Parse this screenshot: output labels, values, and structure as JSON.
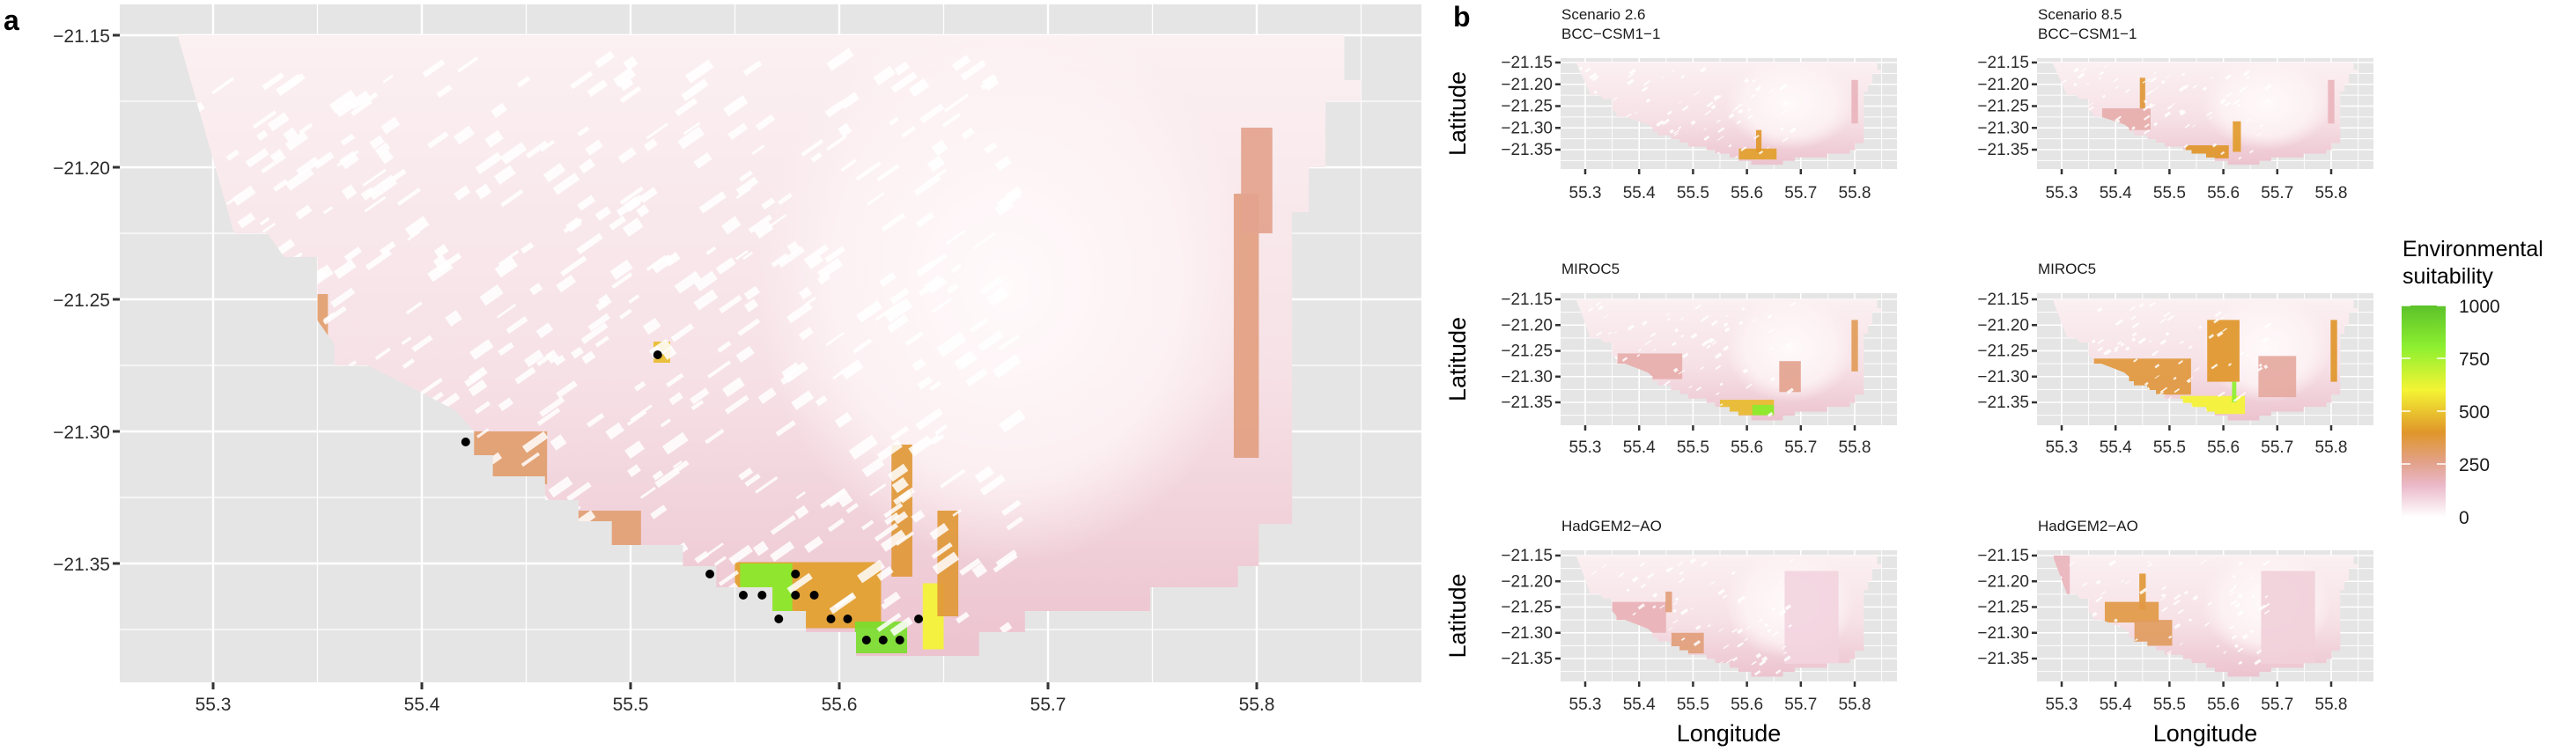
{
  "figure": {
    "panel_a_letter": "a",
    "panel_b_letter": "b"
  },
  "chart_data": [
    {
      "id": "panel-a",
      "type": "heatmap",
      "title": "",
      "xlabel": "",
      "ylabel": "",
      "xlim": [
        55.255,
        55.879
      ],
      "ylim": [
        -21.395,
        -21.138
      ],
      "x_ticks": [
        55.3,
        55.4,
        55.5,
        55.6,
        55.7,
        55.8
      ],
      "x_tick_labels": [
        "55.3",
        "55.4",
        "55.5",
        "55.6",
        "55.7",
        "55.8"
      ],
      "y_ticks": [
        -21.15,
        -21.2,
        -21.25,
        -21.3,
        -21.35
      ],
      "y_tick_labels": [
        "−21.15",
        "−21.20",
        "−21.25",
        "−21.30",
        "−21.35"
      ],
      "grid": true,
      "layer": "current environmental suitability",
      "occurrence_points": [
        {
          "lon": 55.513,
          "lat": -21.271
        },
        {
          "lon": 55.421,
          "lat": -21.304
        },
        {
          "lon": 55.538,
          "lat": -21.354
        },
        {
          "lon": 55.579,
          "lat": -21.354
        },
        {
          "lon": 55.554,
          "lat": -21.362
        },
        {
          "lon": 55.563,
          "lat": -21.362
        },
        {
          "lon": 55.579,
          "lat": -21.362
        },
        {
          "lon": 55.588,
          "lat": -21.362
        },
        {
          "lon": 55.571,
          "lat": -21.371
        },
        {
          "lon": 55.596,
          "lat": -21.371
        },
        {
          "lon": 55.604,
          "lat": -21.371
        },
        {
          "lon": 55.638,
          "lat": -21.371
        },
        {
          "lon": 55.613,
          "lat": -21.379
        },
        {
          "lon": 55.621,
          "lat": -21.379
        },
        {
          "lon": 55.629,
          "lat": -21.379
        }
      ],
      "hotspots": [
        {
          "lon": 55.515,
          "lat": -21.27,
          "w": 0.008,
          "h": 0.008,
          "value": 480
        },
        {
          "lon": 55.425,
          "lat": -21.31,
          "w": 0.07,
          "h": 0.02,
          "value": 300
        },
        {
          "lon": 55.345,
          "lat": -21.258,
          "w": 0.02,
          "h": 0.02,
          "value": 300
        },
        {
          "lon": 55.49,
          "lat": -21.34,
          "w": 0.03,
          "h": 0.02,
          "value": 290
        },
        {
          "lon": 55.585,
          "lat": -21.362,
          "w": 0.07,
          "h": 0.025,
          "value": 420
        },
        {
          "lon": 55.565,
          "lat": -21.36,
          "w": 0.025,
          "h": 0.02,
          "value": 820
        },
        {
          "lon": 55.62,
          "lat": -21.378,
          "w": 0.025,
          "h": 0.012,
          "value": 880
        },
        {
          "lon": 55.645,
          "lat": -21.37,
          "w": 0.01,
          "h": 0.025,
          "value": 600
        },
        {
          "lon": 55.63,
          "lat": -21.33,
          "w": 0.01,
          "h": 0.05,
          "value": 380
        },
        {
          "lon": 55.652,
          "lat": -21.35,
          "w": 0.01,
          "h": 0.04,
          "value": 380
        },
        {
          "lon": 55.795,
          "lat": -21.26,
          "w": 0.012,
          "h": 0.1,
          "value": 270
        },
        {
          "lon": 55.8,
          "lat": -21.205,
          "w": 0.015,
          "h": 0.04,
          "value": 250
        }
      ]
    },
    {
      "id": "panel-b",
      "type": "heatmap",
      "xlabel": "Longitude",
      "ylabel": "Latitude",
      "x_ticks": [
        55.3,
        55.4,
        55.5,
        55.6,
        55.7,
        55.8
      ],
      "x_tick_labels": [
        "55.3",
        "55.4",
        "55.5",
        "55.6",
        "55.7",
        "55.8"
      ],
      "y_ticks": [
        -21.15,
        -21.2,
        -21.25,
        -21.3,
        -21.35
      ],
      "y_tick_labels": [
        "−21.15",
        "−21.20",
        "−21.25",
        "−21.30",
        "−21.35"
      ],
      "grid": true,
      "facets": [
        {
          "title_lines": [
            "Scenario 2.6",
            "BCC−CSM1−1"
          ],
          "scenario": "2.6",
          "model": "BCC-CSM1-1",
          "hotspots": [
            {
              "lon": 55.62,
              "lat": -21.36,
              "w": 0.07,
              "h": 0.025,
              "value": 420
            },
            {
              "lon": 55.622,
              "lat": -21.33,
              "w": 0.01,
              "h": 0.05,
              "value": 400
            },
            {
              "lon": 55.8,
              "lat": -21.24,
              "w": 0.012,
              "h": 0.1,
              "value": 170
            }
          ]
        },
        {
          "title_lines": [
            "Scenario 8.5",
            "BCC−CSM1−1"
          ],
          "scenario": "8.5",
          "model": "BCC-CSM1-1",
          "hotspots": [
            {
              "lon": 55.45,
              "lat": -21.22,
              "w": 0.01,
              "h": 0.07,
              "value": 380
            },
            {
              "lon": 55.42,
              "lat": -21.28,
              "w": 0.09,
              "h": 0.05,
              "value": 200
            },
            {
              "lon": 55.57,
              "lat": -21.355,
              "w": 0.08,
              "h": 0.03,
              "value": 400
            },
            {
              "lon": 55.625,
              "lat": -21.32,
              "w": 0.015,
              "h": 0.07,
              "value": 410
            },
            {
              "lon": 55.8,
              "lat": -21.24,
              "w": 0.012,
              "h": 0.1,
              "value": 170
            }
          ]
        },
        {
          "title_lines": [
            "MIROC5"
          ],
          "scenario": "2.6",
          "model": "MIROC5",
          "hotspots": [
            {
              "lon": 55.42,
              "lat": -21.28,
              "w": 0.12,
              "h": 0.05,
              "value": 200
            },
            {
              "lon": 55.6,
              "lat": -21.36,
              "w": 0.1,
              "h": 0.03,
              "value": 480
            },
            {
              "lon": 55.63,
              "lat": -21.365,
              "w": 0.04,
              "h": 0.02,
              "value": 820
            },
            {
              "lon": 55.68,
              "lat": -21.3,
              "w": 0.04,
              "h": 0.06,
              "value": 250
            },
            {
              "lon": 55.8,
              "lat": -21.24,
              "w": 0.012,
              "h": 0.1,
              "value": 330
            }
          ]
        },
        {
          "title_lines": [
            "MIROC5"
          ],
          "scenario": "8.5",
          "model": "MIROC5",
          "hotspots": [
            {
              "lon": 55.45,
              "lat": -21.3,
              "w": 0.18,
              "h": 0.07,
              "value": 370
            },
            {
              "lon": 55.6,
              "lat": -21.25,
              "w": 0.06,
              "h": 0.12,
              "value": 400
            },
            {
              "lon": 55.58,
              "lat": -21.355,
              "w": 0.12,
              "h": 0.035,
              "value": 600
            },
            {
              "lon": 55.62,
              "lat": -21.33,
              "w": 0.008,
              "h": 0.04,
              "value": 800
            },
            {
              "lon": 55.7,
              "lat": -21.3,
              "w": 0.07,
              "h": 0.08,
              "value": 220
            },
            {
              "lon": 55.805,
              "lat": -21.25,
              "w": 0.012,
              "h": 0.12,
              "value": 400
            }
          ]
        },
        {
          "title_lines": [
            "HadGEM2−AO"
          ],
          "scenario": "2.6",
          "model": "HadGEM2-AO",
          "hotspots": [
            {
              "lon": 55.39,
              "lat": -21.27,
              "w": 0.12,
              "h": 0.06,
              "value": 180
            },
            {
              "lon": 55.455,
              "lat": -21.24,
              "w": 0.012,
              "h": 0.04,
              "value": 280
            },
            {
              "lon": 55.49,
              "lat": -21.32,
              "w": 0.06,
              "h": 0.04,
              "value": 280
            },
            {
              "lon": 55.72,
              "lat": -21.27,
              "w": 0.1,
              "h": 0.18,
              "value": 90
            }
          ]
        },
        {
          "title_lines": [
            "HadGEM2−AO"
          ],
          "scenario": "8.5",
          "model": "HadGEM2-AO",
          "hotspots": [
            {
              "lon": 55.3,
              "lat": -21.2,
              "w": 0.03,
              "h": 0.1,
              "value": 170
            },
            {
              "lon": 55.45,
              "lat": -21.22,
              "w": 0.012,
              "h": 0.07,
              "value": 380
            },
            {
              "lon": 55.43,
              "lat": -21.26,
              "w": 0.1,
              "h": 0.04,
              "value": 360
            },
            {
              "lon": 55.47,
              "lat": -21.3,
              "w": 0.07,
              "h": 0.05,
              "value": 320
            },
            {
              "lon": 55.72,
              "lat": -21.27,
              "w": 0.1,
              "h": 0.18,
              "value": 100
            }
          ]
        }
      ]
    }
  ],
  "legend": {
    "title_lines": [
      "Environmental",
      "suitability"
    ],
    "ticks": [
      0,
      250,
      500,
      750,
      1000
    ],
    "tick_labels": [
      "0",
      "250",
      "500",
      "750",
      "1000"
    ],
    "range": [
      0,
      1000
    ],
    "color_stops": [
      {
        "value": 0,
        "color": "#ffffff"
      },
      {
        "value": 150,
        "color": "#eab8c8"
      },
      {
        "value": 260,
        "color": "#e2a188"
      },
      {
        "value": 400,
        "color": "#e0962a"
      },
      {
        "value": 600,
        "color": "#f4f434"
      },
      {
        "value": 800,
        "color": "#8ef030"
      },
      {
        "value": 1000,
        "color": "#5cc22a"
      }
    ]
  },
  "colors": {
    "panel_background": "#e5e5e5",
    "grid": "#ffffff",
    "point": "#000000",
    "land_base": "#f7e8ec"
  }
}
